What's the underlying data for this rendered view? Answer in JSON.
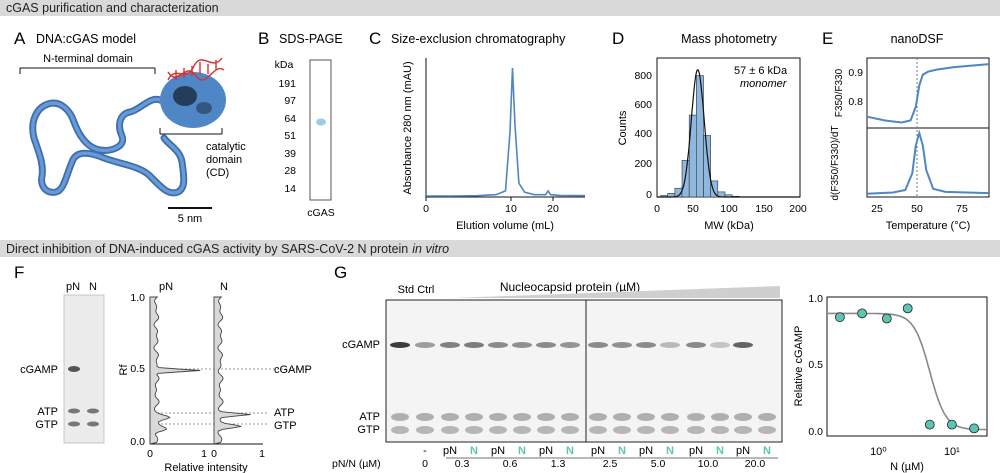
{
  "sections": [
    "cGAS purification and characterization",
    "Direct inhibition of DNA-induced cGAS activity by SARS-CoV-2 N protein"
  ],
  "section_suffix": "in vitro",
  "colors": {
    "blue": "#4f86c6",
    "teal": "#5ec6b0",
    "gray_band": "#d9d9d9",
    "dna_red": "#d83030"
  },
  "panelA": {
    "letter": "A",
    "title": "DNA:cGAS model",
    "nterm_label": "N-terminal domain",
    "cd_label": [
      "catalytic",
      "domain",
      "(CD)"
    ],
    "scale_label": "5 nm"
  },
  "panelB": {
    "letter": "B",
    "title": "SDS-PAGE",
    "unit": "kDa",
    "markers": [
      "191",
      "97",
      "64",
      "51",
      "39",
      "28",
      "14"
    ],
    "lane_label": "cGAS"
  },
  "panelC": {
    "letter": "C",
    "title": "Size-exclusion chromatography",
    "xlabel": "Elution volume (mL)",
    "ylabel": "Absorbance 280 nm (mAU)",
    "xticks": [
      "0",
      "10",
      "20"
    ]
  },
  "panelD": {
    "letter": "D",
    "title": "Mass photometry",
    "xlabel": "MW (kDa)",
    "ylabel": "Counts",
    "xticks": [
      "0",
      "50",
      "100",
      "150",
      "200"
    ],
    "yticks": [
      "0",
      "200",
      "400",
      "600",
      "800"
    ],
    "annot": "57 ± 6 kDa",
    "annot2": "monomer"
  },
  "panelE": {
    "letter": "E",
    "title": "nanoDSF",
    "xlabel": "Temperature (°C)",
    "xticks": [
      "25",
      "50",
      "75"
    ],
    "yticks_top": [
      "0.8",
      "0.9"
    ],
    "ylabel_top": "F350/F330",
    "ylabel_bot": "d(F350/F330)/dT"
  },
  "panelF": {
    "letter": "F",
    "lanes": [
      "pN",
      "N"
    ],
    "labels": [
      "cGAMP",
      "ATP",
      "GTP"
    ],
    "xlabel": "Relative intensity",
    "ylabel": "Rf",
    "yticks": [
      "0.0",
      "0.5",
      "1.0"
    ],
    "xticks": [
      "0",
      "1"
    ],
    "trace_labels": [
      "pN",
      "N"
    ]
  },
  "panelG": {
    "letter": "G",
    "std_label": "Std Ctrl",
    "title": "Nucleocapsid protein (µM)",
    "labels": [
      "cGAMP",
      "ATP",
      "GTP"
    ],
    "row_label": "pN/N (µM)",
    "conc": [
      "0",
      "0.3",
      "0.6",
      "1.3",
      "2.5",
      "5.0",
      "10.0",
      "20.0"
    ],
    "ctrl_lane": "-",
    "lane_pair": [
      "pN",
      "N"
    ]
  },
  "chart_data": [
    {
      "panel": "C",
      "type": "line",
      "xlabel": "Elution volume (mL)",
      "ylabel": "Absorbance 280 nm (mAU)",
      "xlim": [
        0,
        25
      ],
      "series": [
        {
          "x": [
            0,
            4,
            8,
            11,
            12.5,
            13.2,
            13.6,
            14.0,
            14.6,
            15.5,
            17,
            18.8,
            19.2,
            19.6,
            21,
            25
          ],
          "values": [
            0,
            0,
            0.2,
            1,
            4,
            50,
            100,
            55,
            10,
            3,
            1,
            1,
            4,
            1,
            0.5,
            0.3
          ]
        }
      ]
    },
    {
      "panel": "D",
      "type": "bar",
      "xlabel": "MW (kDa)",
      "ylabel": "Counts",
      "xlim": [
        0,
        200
      ],
      "ylim": [
        0,
        950
      ],
      "categories": [
        10,
        20,
        30,
        40,
        50,
        60,
        70,
        80,
        90,
        100,
        110
      ],
      "values": [
        10,
        25,
        60,
        250,
        560,
        830,
        420,
        110,
        35,
        15,
        5
      ]
    },
    {
      "panel": "E-top",
      "type": "line",
      "xlabel": "Temperature (°C)",
      "ylabel": "F350/F330",
      "xlim": [
        20,
        90
      ],
      "ylim": [
        0.72,
        0.95
      ],
      "series": [
        {
          "x": [
            20,
            30,
            40,
            45,
            48,
            50,
            52,
            55,
            60,
            70,
            80,
            90
          ],
          "values": [
            0.757,
            0.745,
            0.738,
            0.745,
            0.79,
            0.86,
            0.895,
            0.905,
            0.912,
            0.92,
            0.925,
            0.93
          ]
        }
      ]
    },
    {
      "panel": "E-bottom",
      "type": "line",
      "xlabel": "Temperature (°C)",
      "ylabel": "d(F350/F330)/dT",
      "xlim": [
        20,
        90
      ],
      "series": [
        {
          "x": [
            20,
            35,
            42,
            46,
            48,
            50,
            52,
            54,
            58,
            65,
            90
          ],
          "values": [
            0.02,
            0.04,
            0.08,
            0.35,
            0.8,
            1.0,
            0.8,
            0.4,
            0.1,
            0.05,
            0.03
          ]
        }
      ]
    },
    {
      "panel": "G-right",
      "type": "scatter",
      "xlabel": "N (µM)",
      "ylabel": "Relative cGAMP",
      "xscale": "log",
      "xlim": [
        0.2,
        30
      ],
      "ylim": [
        -0.05,
        1.05
      ],
      "xticks": [
        "10⁰",
        "10¹"
      ],
      "yticks": [
        "0.0",
        "0.5",
        "1.0"
      ],
      "points": {
        "x": [
          0.3,
          0.6,
          1.3,
          2.5,
          5.0,
          10.0,
          20.0
        ],
        "y": [
          0.89,
          0.92,
          0.88,
          0.96,
          0.04,
          0.04,
          0.01
        ]
      },
      "fit": {
        "top": 0.92,
        "bottom": 0.0,
        "ec50": 5.0,
        "hill": 4
      }
    }
  ]
}
